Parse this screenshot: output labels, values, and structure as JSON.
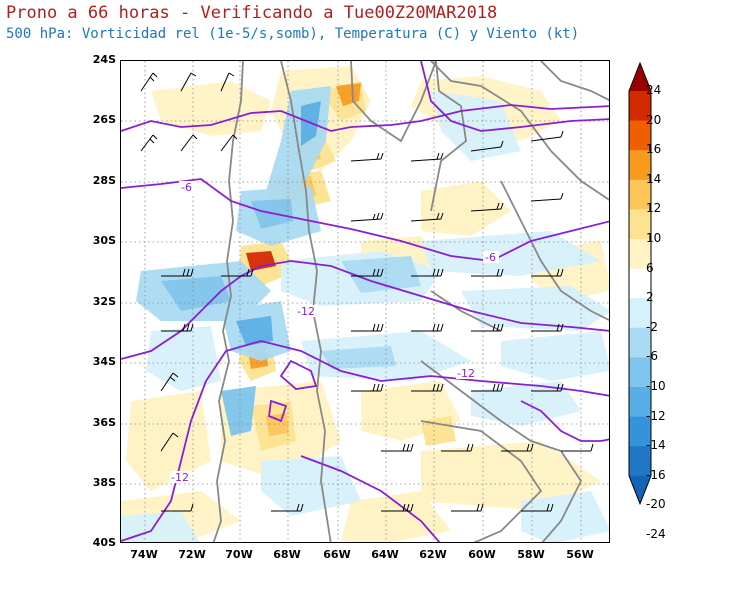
{
  "header": {
    "title": "Prono a 66 horas - Verificando a Tue00Z20MAR2018",
    "subtitle": "500 hPa: Vorticidad rel (1e-5/s,somb), Temperatura (C) y Viento (kt)"
  },
  "map": {
    "lat_labels": [
      "24S",
      "26S",
      "28S",
      "30S",
      "32S",
      "34S",
      "36S",
      "38S",
      "40S"
    ],
    "lon_labels": [
      "74W",
      "72W",
      "70W",
      "68W",
      "66W",
      "64W",
      "62W",
      "60W",
      "58W",
      "56W"
    ],
    "contour_labels": [
      "-6",
      "-6",
      "-12",
      "-12",
      "-12"
    ]
  },
  "colorbar": {
    "labels": [
      "24",
      "20",
      "16",
      "14",
      "12",
      "10",
      "6",
      "2",
      "-2",
      "-6",
      "-10",
      "-12",
      "-14",
      "-16",
      "-20",
      "-24"
    ],
    "colors": [
      "#9a0000",
      "#d42a00",
      "#ef5f00",
      "#f79a1e",
      "#fbc558",
      "#fde38f",
      "#fff3c4",
      "#ffffff",
      "#d6f1fb",
      "#a9dbf3",
      "#7fc4ed",
      "#58aee6",
      "#3594d9",
      "#2077c6",
      "#1563b5"
    ]
  }
}
